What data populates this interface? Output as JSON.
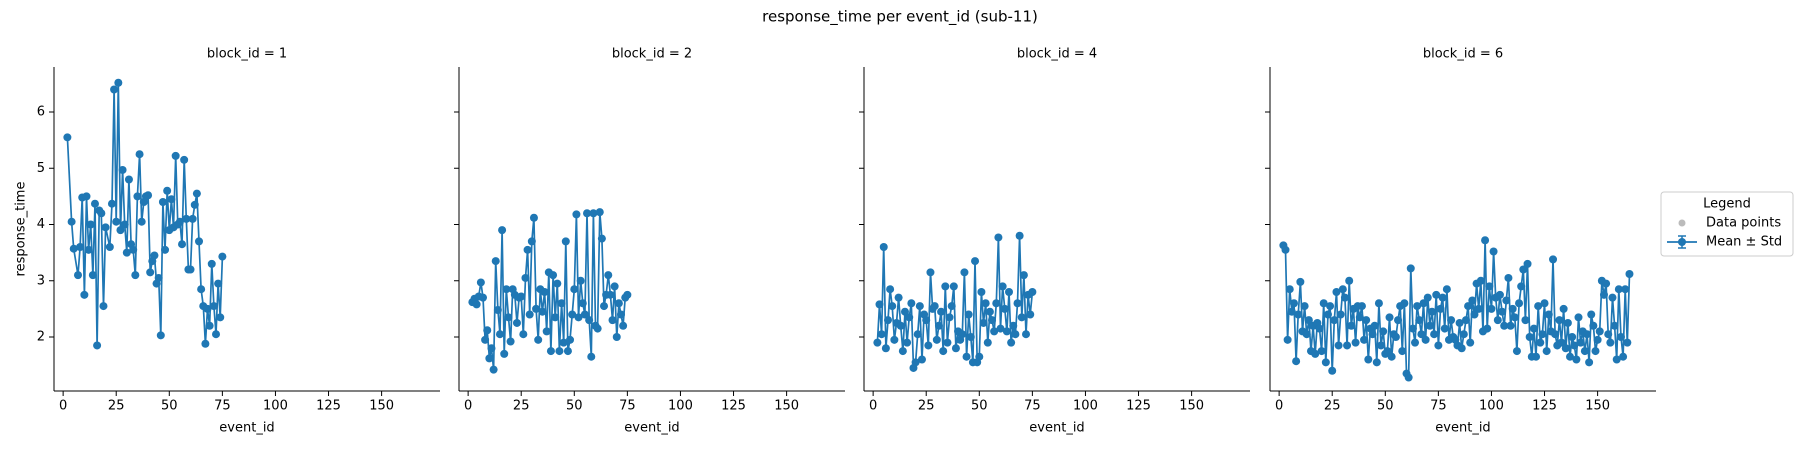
{
  "chart_data": {
    "type": "line",
    "title": "response_time per event_id (sub-11)",
    "xlabel": "event_id",
    "ylabel": "response_time",
    "xlim": [
      -4.3,
      177.5
    ],
    "ylim": [
      1.04,
      6.8
    ],
    "xticks": [
      0,
      25,
      50,
      75,
      100,
      125,
      150
    ],
    "yticks": [
      2,
      3,
      4,
      5,
      6
    ],
    "color": "#1f77b4",
    "legend": {
      "title": "Legend",
      "position": "right",
      "entries": [
        {
          "name": "Data points",
          "color": "#bbbbbb"
        },
        {
          "name": "Mean ± Std",
          "color": "#1f77b4"
        }
      ]
    },
    "panels": [
      {
        "title": "block_id = 1",
        "x": [
          2,
          4,
          5,
          7,
          8,
          9,
          10,
          11,
          12,
          13,
          14,
          15,
          16,
          17,
          18,
          19,
          20,
          22,
          23,
          24,
          25,
          26,
          27,
          28,
          29,
          30,
          31,
          32,
          33,
          34,
          35,
          36,
          37,
          38,
          39,
          40,
          41,
          42,
          43,
          44,
          45,
          46,
          47,
          48,
          49,
          50,
          51,
          52,
          53,
          54,
          55,
          56,
          57,
          58,
          59,
          60,
          61,
          62,
          63,
          64,
          65,
          66,
          67,
          68,
          69,
          70,
          71,
          72,
          73,
          74,
          75
        ],
        "values": [
          5.55,
          4.05,
          3.57,
          3.1,
          3.6,
          4.48,
          2.75,
          4.5,
          3.55,
          4.0,
          3.1,
          4.37,
          1.85,
          4.25,
          4.2,
          2.55,
          3.95,
          3.6,
          4.37,
          6.4,
          4.05,
          6.52,
          3.9,
          4.97,
          4.0,
          3.5,
          4.8,
          3.65,
          3.55,
          3.1,
          4.5,
          5.25,
          4.05,
          4.4,
          4.5,
          4.52,
          3.15,
          3.35,
          3.45,
          2.95,
          3.05,
          2.03,
          4.4,
          3.55,
          4.6,
          3.9,
          4.45,
          3.95,
          5.22,
          4.0,
          4.05,
          3.65,
          5.15,
          4.1,
          3.2,
          3.2,
          4.1,
          4.35,
          4.55,
          3.7,
          2.85,
          2.55,
          1.88,
          2.5,
          2.2,
          3.3,
          2.55,
          2.05,
          2.95,
          2.35,
          3.43
        ]
      },
      {
        "title": "block_id = 2",
        "x": [
          2,
          3,
          4,
          5,
          6,
          7,
          8,
          9,
          10,
          11,
          12,
          13,
          14,
          15,
          16,
          17,
          18,
          19,
          20,
          21,
          22,
          23,
          24,
          25,
          26,
          27,
          28,
          29,
          30,
          31,
          32,
          33,
          34,
          35,
          36,
          37,
          38,
          39,
          40,
          41,
          42,
          43,
          44,
          45,
          46,
          47,
          48,
          49,
          50,
          51,
          52,
          53,
          54,
          55,
          56,
          57,
          58,
          59,
          60,
          61,
          62,
          63,
          64,
          65,
          66,
          67,
          68,
          69,
          70,
          71,
          72,
          73,
          74,
          75
        ],
        "values": [
          2.62,
          2.68,
          2.58,
          2.72,
          2.97,
          2.7,
          1.95,
          2.12,
          1.62,
          1.8,
          1.42,
          3.35,
          2.48,
          2.05,
          3.9,
          1.7,
          2.85,
          2.35,
          1.92,
          2.85,
          2.75,
          2.25,
          2.7,
          2.72,
          2.05,
          3.05,
          3.55,
          2.4,
          3.7,
          4.12,
          2.5,
          1.95,
          2.85,
          2.45,
          2.8,
          2.1,
          3.15,
          1.75,
          3.1,
          2.35,
          2.95,
          1.75,
          2.6,
          1.9,
          3.7,
          1.75,
          1.95,
          2.4,
          2.85,
          4.18,
          2.35,
          3.0,
          2.6,
          2.4,
          4.2,
          2.3,
          1.65,
          4.2,
          2.2,
          2.15,
          4.22,
          3.75,
          2.55,
          2.75,
          3.1,
          2.75,
          2.3,
          2.9,
          2.0,
          2.6,
          2.4,
          2.2,
          2.7,
          2.75
        ]
      },
      {
        "title": "block_id = 4",
        "x": [
          2,
          3,
          4,
          5,
          6,
          7,
          8,
          9,
          10,
          11,
          12,
          13,
          14,
          15,
          16,
          17,
          18,
          19,
          20,
          21,
          22,
          23,
          24,
          25,
          26,
          27,
          28,
          29,
          30,
          31,
          32,
          33,
          34,
          35,
          36,
          37,
          38,
          39,
          40,
          41,
          42,
          43,
          44,
          45,
          46,
          47,
          48,
          49,
          50,
          51,
          52,
          53,
          54,
          55,
          56,
          57,
          58,
          59,
          60,
          61,
          62,
          63,
          64,
          65,
          66,
          67,
          68,
          69,
          70,
          71,
          72,
          73,
          74,
          75
        ],
        "values": [
          1.9,
          2.58,
          2.05,
          3.6,
          1.8,
          2.3,
          2.85,
          2.55,
          1.95,
          2.25,
          2.7,
          2.2,
          1.75,
          2.45,
          1.9,
          2.35,
          2.6,
          1.45,
          1.55,
          2.05,
          2.55,
          1.6,
          2.4,
          2.3,
          1.85,
          3.15,
          2.5,
          2.55,
          1.95,
          2.2,
          2.45,
          1.75,
          2.9,
          1.9,
          2.35,
          2.55,
          2.9,
          1.8,
          2.1,
          1.95,
          2.05,
          3.15,
          1.65,
          2.4,
          2.0,
          1.55,
          3.35,
          1.55,
          1.65,
          2.8,
          2.25,
          2.6,
          1.9,
          2.45,
          2.3,
          2.1,
          2.6,
          3.77,
          2.15,
          2.9,
          2.5,
          2.1,
          2.8,
          1.9,
          2.2,
          2.05,
          2.6,
          3.8,
          2.35,
          3.1,
          2.05,
          2.75,
          2.4,
          2.8
        ]
      },
      {
        "title": "block_id = 6",
        "x": [
          2,
          3,
          4,
          5,
          6,
          7,
          8,
          9,
          10,
          11,
          12,
          13,
          14,
          15,
          16,
          17,
          18,
          19,
          20,
          21,
          22,
          23,
          24,
          25,
          26,
          27,
          28,
          29,
          30,
          31,
          32,
          33,
          34,
          35,
          36,
          37,
          38,
          39,
          40,
          41,
          42,
          43,
          44,
          45,
          46,
          47,
          48,
          49,
          50,
          51,
          52,
          53,
          54,
          55,
          56,
          57,
          58,
          59,
          60,
          61,
          62,
          63,
          64,
          65,
          66,
          67,
          68,
          69,
          70,
          71,
          72,
          73,
          74,
          75,
          76,
          77,
          78,
          79,
          80,
          81,
          82,
          83,
          84,
          85,
          86,
          87,
          88,
          89,
          90,
          91,
          92,
          93,
          94,
          95,
          96,
          97,
          98,
          99,
          100,
          101,
          102,
          103,
          104,
          105,
          106,
          107,
          108,
          109,
          110,
          111,
          112,
          113,
          114,
          115,
          116,
          117,
          118,
          119,
          120,
          121,
          122,
          123,
          124,
          125,
          126,
          127,
          128,
          129,
          130,
          131,
          132,
          133,
          134,
          135,
          136,
          137,
          138,
          139,
          140,
          141,
          142,
          143,
          144,
          145,
          146,
          147,
          148,
          149,
          150,
          151,
          152,
          153,
          154,
          155,
          156,
          157,
          158,
          159,
          160,
          161,
          162,
          163,
          164,
          165
        ],
        "values": [
          3.63,
          3.55,
          1.95,
          2.85,
          2.45,
          2.6,
          1.57,
          2.4,
          2.98,
          2.1,
          2.55,
          2.05,
          2.3,
          1.75,
          2.2,
          1.7,
          2.25,
          2.15,
          1.75,
          2.6,
          1.55,
          2.4,
          2.55,
          1.4,
          2.3,
          2.8,
          1.85,
          2.4,
          2.85,
          2.7,
          1.85,
          3.0,
          2.2,
          2.5,
          1.9,
          2.55,
          2.35,
          2.55,
          1.95,
          2.3,
          1.6,
          2.15,
          2.05,
          2.2,
          1.55,
          2.6,
          1.85,
          2.1,
          1.7,
          1.75,
          2.35,
          1.65,
          2.05,
          2.0,
          2.3,
          2.55,
          1.75,
          2.6,
          1.35,
          1.28,
          3.22,
          2.15,
          1.9,
          2.55,
          2.3,
          2.05,
          2.6,
          1.95,
          2.7,
          2.2,
          2.45,
          2.05,
          2.75,
          1.85,
          2.5,
          2.7,
          2.15,
          2.85,
          1.95,
          2.3,
          2.0,
          1.95,
          1.85,
          2.25,
          1.8,
          2.05,
          2.3,
          2.55,
          1.9,
          2.65,
          2.4,
          2.95,
          2.5,
          3.0,
          2.1,
          3.72,
          2.15,
          2.9,
          2.5,
          3.52,
          2.7,
          2.3,
          2.75,
          2.45,
          2.2,
          2.65,
          3.05,
          2.2,
          2.5,
          2.35,
          1.75,
          2.6,
          2.9,
          3.2,
          2.3,
          3.3,
          2.0,
          1.65,
          2.15,
          1.65,
          2.55,
          1.9,
          2.05,
          2.6,
          1.75,
          2.4,
          2.1,
          3.38,
          2.05,
          1.85,
          2.3,
          1.9,
          2.5,
          1.8,
          2.25,
          1.65,
          2.0,
          1.85,
          1.6,
          2.35,
          1.9,
          2.1,
          1.75,
          2.05,
          1.55,
          2.4,
          2.2,
          1.75,
          1.95,
          2.1,
          3.0,
          2.75,
          2.95,
          2.05,
          1.9,
          2.7,
          2.2,
          1.6,
          2.85,
          2.0,
          1.65,
          2.85,
          1.9,
          3.12
        ]
      }
    ]
  }
}
